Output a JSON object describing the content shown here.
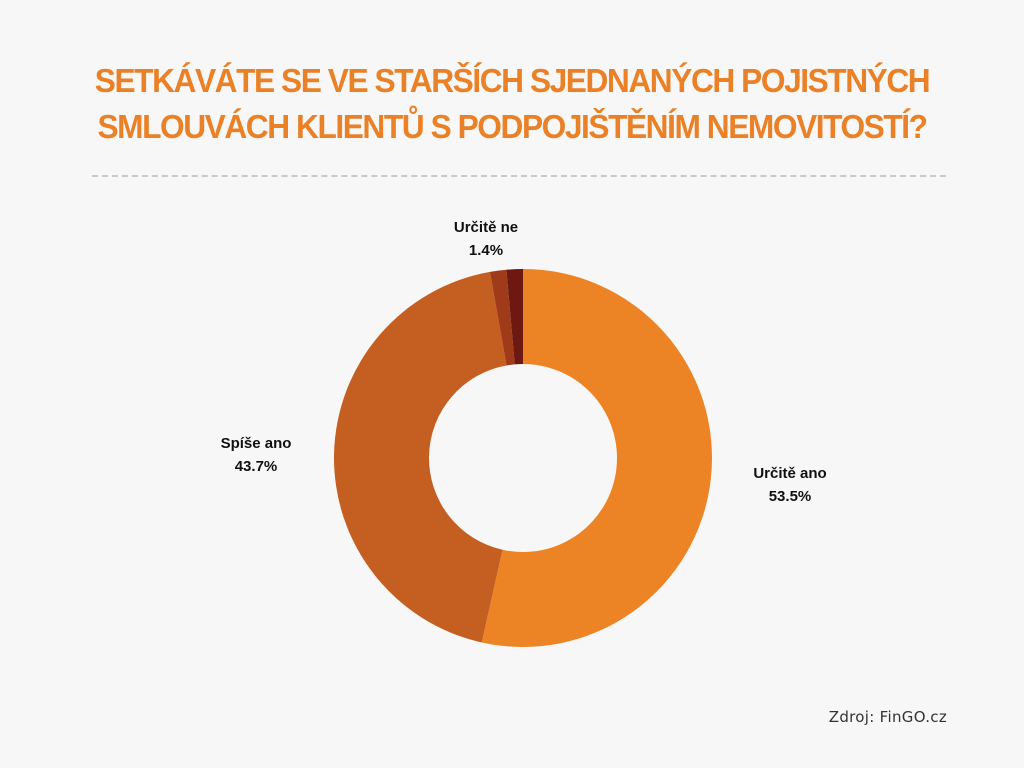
{
  "chart_data": {
    "type": "pie",
    "title": "SETKÁVÁTE SE VE STARŠÍCH SJEDNANÝCH POJISTNÝCH SMLOUVÁCH KLIENTŮ S PODPOJIŠTĚNÍM NEMOVITOSTÍ?",
    "variant": "donut",
    "slices": [
      {
        "label": "Určitě ano",
        "value": 53.5,
        "value_label": "53.5%",
        "color": "#ec8426"
      },
      {
        "label": "Spíše ano",
        "value": 43.7,
        "value_label": "43.7%",
        "color": "#c45f21"
      },
      {
        "label": "",
        "value": 1.4,
        "value_label": "",
        "color": "#a03b1a"
      },
      {
        "label": "Určitě ne",
        "value": 1.4,
        "value_label": "1.4%",
        "color": "#6e1812"
      }
    ]
  },
  "source": "Zdroj: FinGO.cz"
}
